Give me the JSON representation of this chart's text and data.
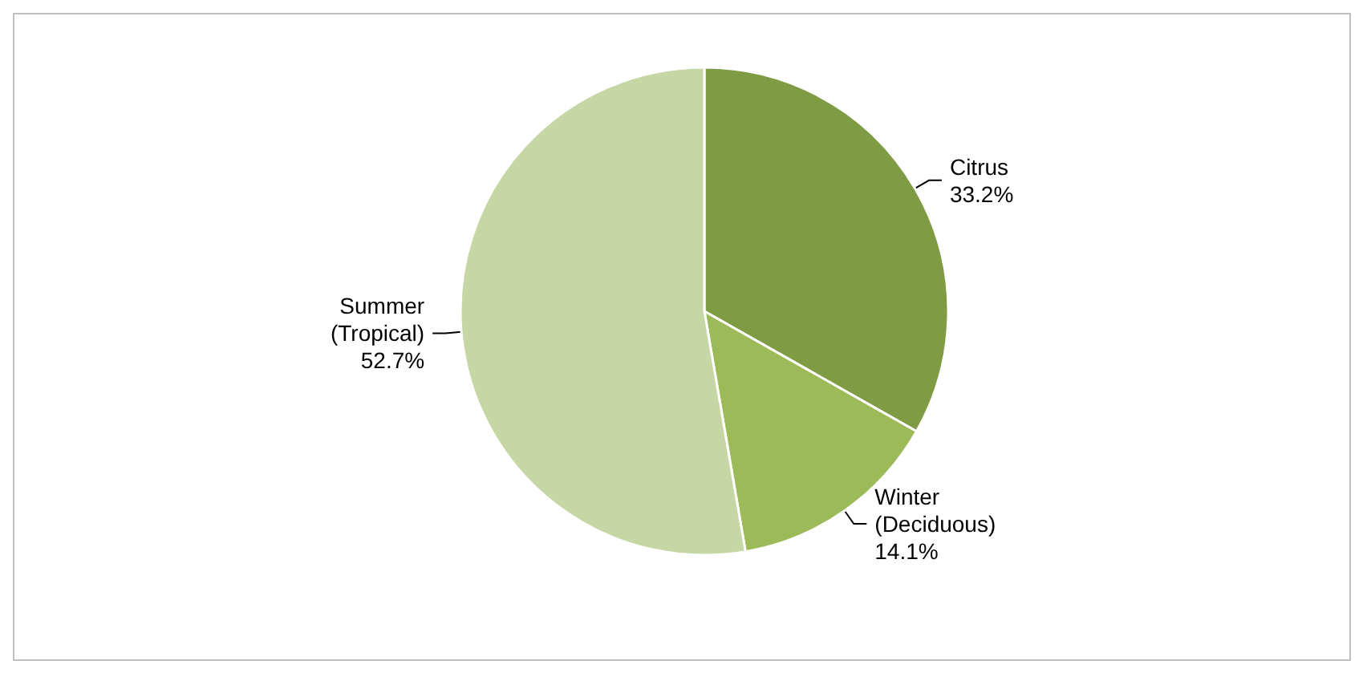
{
  "chart_data": {
    "type": "pie",
    "categories": [
      "Citrus",
      "Winter\n(Deciduous)",
      "Summer\n(Tropical)"
    ],
    "values": [
      33.2,
      14.1,
      52.7
    ],
    "colors": [
      "#7f9c45",
      "#9cbb58",
      "#c6d6a4"
    ],
    "value_labels": [
      "33.2%",
      "14.1%",
      "52.7%"
    ],
    "legend": false
  }
}
